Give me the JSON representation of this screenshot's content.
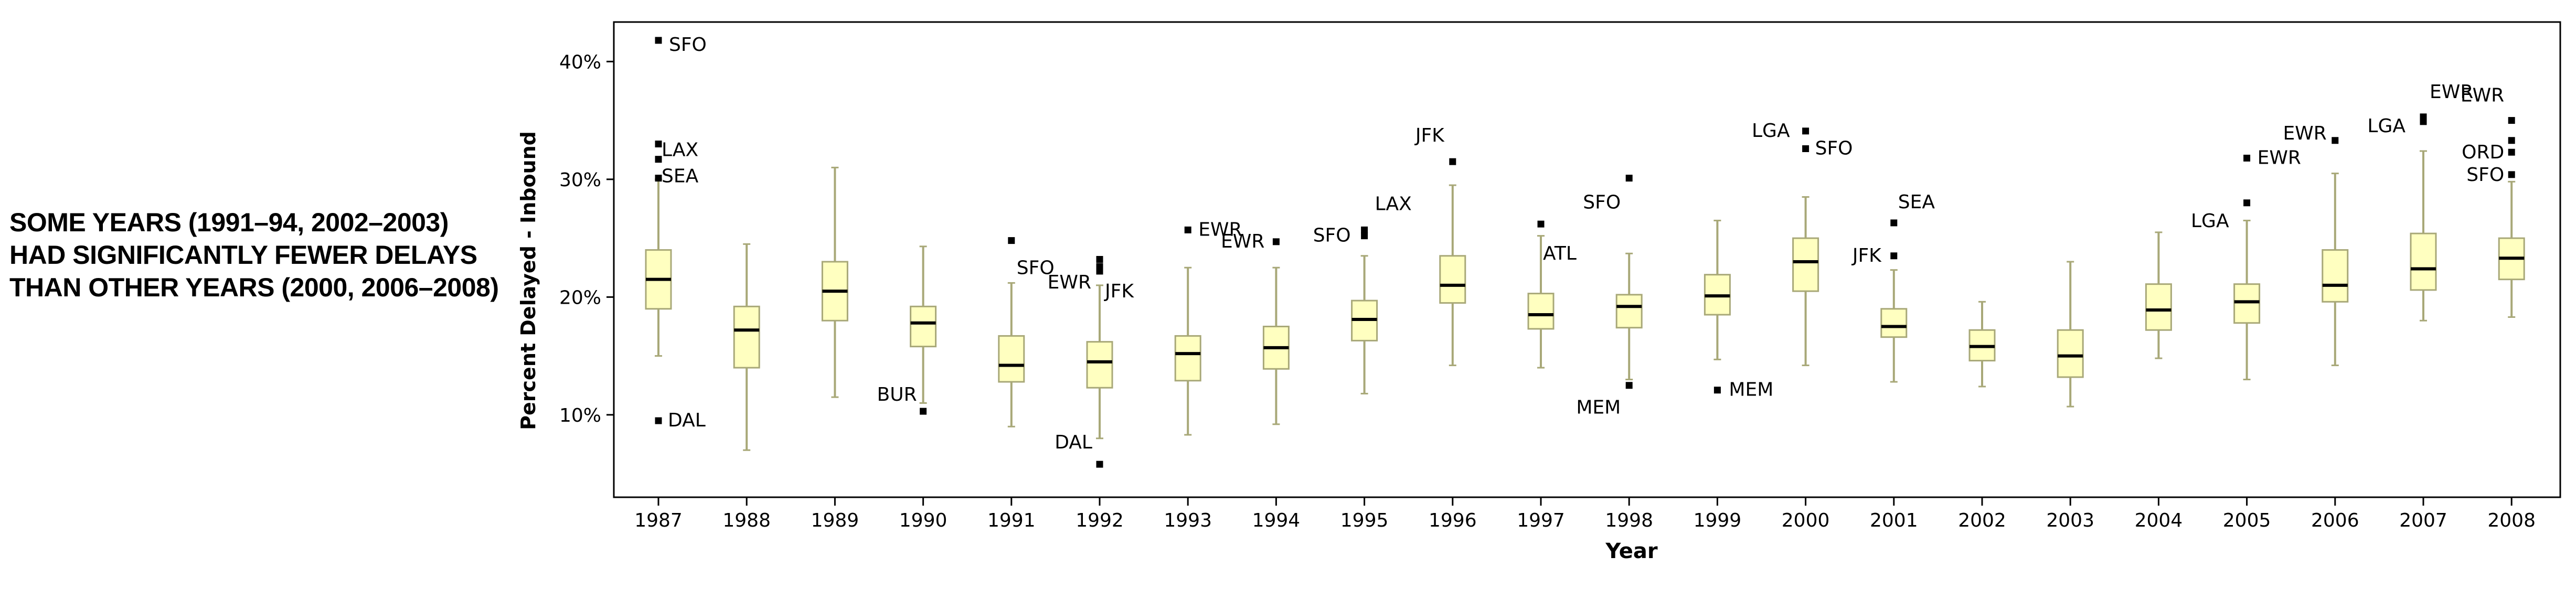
{
  "caption": {
    "lines": [
      "SOME YEARS (1991–94, 2002–2003)",
      "HAD SIGNIFICANTLY FEWER DELAYS",
      "THAN OTHER YEARS (2000, 2006–2008)"
    ]
  },
  "chart_data": {
    "type": "box",
    "xlabel": "Year",
    "ylabel": "Percent Delayed - Inbound",
    "ylim": [
      3,
      44
    ],
    "yticks": [
      10,
      20,
      30,
      40
    ],
    "ytick_labels": [
      "10%",
      "20%",
      "30%",
      "40%"
    ],
    "grid": false,
    "colors": {
      "box_fill": "#ffffc0",
      "box_stroke": "#a8a878",
      "median": "#000000",
      "axis": "#000000"
    },
    "boxes": [
      {
        "year": "1987",
        "whisker_low": 15.0,
        "q1": 19.0,
        "median": 21.5,
        "q3": 24.0,
        "whisker_high": 30.0,
        "outliers": [
          {
            "value": 41.8,
            "label": "SFO"
          },
          {
            "value": 33.0,
            "label": ""
          },
          {
            "value": 31.7,
            "label": "LAX"
          },
          {
            "value": 30.1,
            "label": "SEA"
          },
          {
            "value": 9.5,
            "label": "DAL"
          }
        ]
      },
      {
        "year": "1988",
        "whisker_low": 7.0,
        "q1": 14.0,
        "median": 17.2,
        "q3": 19.2,
        "whisker_high": 24.5,
        "outliers": []
      },
      {
        "year": "1989",
        "whisker_low": 11.5,
        "q1": 18.0,
        "median": 20.5,
        "q3": 23.0,
        "whisker_high": 31.0,
        "outliers": []
      },
      {
        "year": "1990",
        "whisker_low": 11.0,
        "q1": 15.8,
        "median": 17.8,
        "q3": 19.2,
        "whisker_high": 24.3,
        "outliers": [
          {
            "value": 10.3,
            "label": "BUR"
          }
        ]
      },
      {
        "year": "1991",
        "whisker_low": 9.0,
        "q1": 12.8,
        "median": 14.2,
        "q3": 16.7,
        "whisker_high": 21.2,
        "outliers": [
          {
            "value": 24.8,
            "label": "SFO"
          }
        ]
      },
      {
        "year": "1992",
        "whisker_low": 8.0,
        "q1": 12.3,
        "median": 14.5,
        "q3": 16.2,
        "whisker_high": 21.0,
        "outliers": [
          {
            "value": 23.2,
            "label": ""
          },
          {
            "value": 22.6,
            "label": "EWR"
          },
          {
            "value": 22.2,
            "label": "JFK"
          },
          {
            "value": 5.8,
            "label": "DAL"
          }
        ]
      },
      {
        "year": "1993",
        "whisker_low": 8.3,
        "q1": 12.9,
        "median": 15.2,
        "q3": 16.7,
        "whisker_high": 22.5,
        "outliers": [
          {
            "value": 25.7,
            "label": "EWR"
          }
        ]
      },
      {
        "year": "1994",
        "whisker_low": 9.2,
        "q1": 13.9,
        "median": 15.7,
        "q3": 17.5,
        "whisker_high": 22.5,
        "outliers": [
          {
            "value": 24.7,
            "label": "EWR"
          }
        ]
      },
      {
        "year": "1995",
        "whisker_low": 11.8,
        "q1": 16.3,
        "median": 18.1,
        "q3": 19.7,
        "whisker_high": 23.5,
        "outliers": [
          {
            "value": 25.7,
            "label": "LAX"
          },
          {
            "value": 25.2,
            "label": "SFO"
          }
        ]
      },
      {
        "year": "1996",
        "whisker_low": 14.2,
        "q1": 19.5,
        "median": 21.0,
        "q3": 23.5,
        "whisker_high": 29.5,
        "outliers": [
          {
            "value": 31.5,
            "label": "JFK"
          }
        ]
      },
      {
        "year": "1997",
        "whisker_low": 14.0,
        "q1": 17.3,
        "median": 18.5,
        "q3": 20.3,
        "whisker_high": 25.2,
        "outliers": [
          {
            "value": 26.2,
            "label": "ATL"
          }
        ]
      },
      {
        "year": "1998",
        "whisker_low": 13.0,
        "q1": 17.4,
        "median": 19.2,
        "q3": 20.2,
        "whisker_high": 23.7,
        "outliers": [
          {
            "value": 30.1,
            "label": "SFO"
          },
          {
            "value": 12.5,
            "label": "MEM"
          }
        ]
      },
      {
        "year": "1999",
        "whisker_low": 14.7,
        "q1": 18.5,
        "median": 20.1,
        "q3": 21.9,
        "whisker_high": 26.5,
        "outliers": [
          {
            "value": 12.1,
            "label": "MEM"
          }
        ]
      },
      {
        "year": "2000",
        "whisker_low": 14.2,
        "q1": 20.5,
        "median": 23.0,
        "q3": 25.0,
        "whisker_high": 28.5,
        "outliers": [
          {
            "value": 34.1,
            "label": "LGA"
          },
          {
            "value": 32.6,
            "label": "SFO"
          }
        ]
      },
      {
        "year": "2001",
        "whisker_low": 12.8,
        "q1": 16.6,
        "median": 17.5,
        "q3": 19.0,
        "whisker_high": 22.3,
        "outliers": [
          {
            "value": 26.3,
            "label": "SEA"
          },
          {
            "value": 23.5,
            "label": "JFK"
          }
        ]
      },
      {
        "year": "2002",
        "whisker_low": 12.4,
        "q1": 14.6,
        "median": 15.8,
        "q3": 17.2,
        "whisker_high": 19.6,
        "outliers": []
      },
      {
        "year": "2003",
        "whisker_low": 10.7,
        "q1": 13.2,
        "median": 15.0,
        "q3": 17.2,
        "whisker_high": 23.0,
        "outliers": []
      },
      {
        "year": "2004",
        "whisker_low": 14.8,
        "q1": 17.2,
        "median": 18.9,
        "q3": 21.1,
        "whisker_high": 25.5,
        "outliers": []
      },
      {
        "year": "2005",
        "whisker_low": 13.0,
        "q1": 17.8,
        "median": 19.6,
        "q3": 21.1,
        "whisker_high": 26.5,
        "outliers": [
          {
            "value": 31.8,
            "label": "EWR"
          },
          {
            "value": 28.0,
            "label": "LGA"
          }
        ]
      },
      {
        "year": "2006",
        "whisker_low": 14.2,
        "q1": 19.6,
        "median": 21.0,
        "q3": 24.0,
        "whisker_high": 30.5,
        "outliers": [
          {
            "value": 33.3,
            "label": "EWR"
          }
        ]
      },
      {
        "year": "2007",
        "whisker_low": 18.0,
        "q1": 20.6,
        "median": 22.4,
        "q3": 25.4,
        "whisker_high": 32.4,
        "outliers": [
          {
            "value": 35.3,
            "label": "EWR"
          },
          {
            "value": 34.9,
            "label": "LGA"
          }
        ]
      },
      {
        "year": "2008",
        "whisker_low": 18.3,
        "q1": 21.5,
        "median": 23.3,
        "q3": 25.0,
        "whisker_high": 29.8,
        "outliers": [
          {
            "value": 35.0,
            "label": "EWR"
          },
          {
            "value": 33.3,
            "label": ""
          },
          {
            "value": 32.3,
            "label": "ORD"
          },
          {
            "value": 30.4,
            "label": "SFO"
          }
        ]
      }
    ]
  }
}
